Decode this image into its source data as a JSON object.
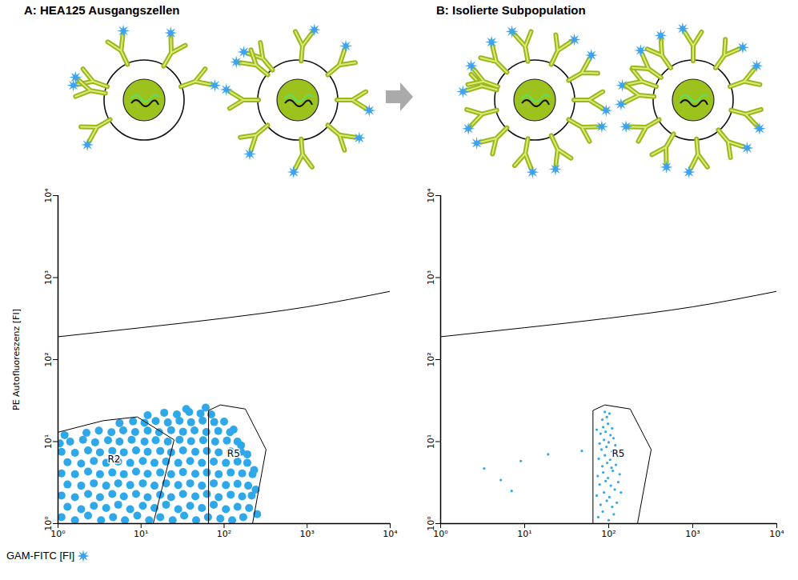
{
  "chart_data": [
    {
      "type": "scatter",
      "title": "A: HEA125 Ausgangszellen",
      "x_label": "GAM-FITC [FI]",
      "y_label": "PE Autofluoreszenz [FI]",
      "log": true,
      "color": "#2fa8ea",
      "xlim": [
        1,
        10000
      ],
      "ylim": [
        1,
        10000
      ],
      "xticks": [
        {
          "value": 1,
          "label": "10⁰"
        },
        {
          "value": 10,
          "label": "10¹"
        },
        {
          "value": 100,
          "label": "10²"
        },
        {
          "value": 1000,
          "label": "10³"
        },
        {
          "value": 10000,
          "label": "10⁴"
        }
      ],
      "yticks": [
        {
          "value": 1,
          "label": "10⁰"
        },
        {
          "value": 10,
          "label": "10¹"
        },
        {
          "value": 100,
          "label": "10²"
        },
        {
          "value": 1000,
          "label": "10³"
        },
        {
          "value": 10000,
          "label": "10⁴"
        }
      ],
      "points": [
        [
          1.1,
          1.2
        ],
        [
          1.6,
          1.1
        ],
        [
          2.3,
          1.25
        ],
        [
          3.3,
          1.1
        ],
        [
          4.6,
          1.2
        ],
        [
          6.4,
          1.1
        ],
        [
          9,
          1.25
        ],
        [
          12.5,
          1.1
        ],
        [
          17,
          1.2
        ],
        [
          24,
          1.1
        ],
        [
          33,
          1.25
        ],
        [
          46,
          1.1
        ],
        [
          64,
          1.2
        ],
        [
          90,
          1.15
        ],
        [
          125,
          1.1
        ],
        [
          170,
          1.2
        ],
        [
          1.3,
          1.6
        ],
        [
          1.9,
          1.5
        ],
        [
          2.7,
          1.65
        ],
        [
          3.8,
          1.55
        ],
        [
          5.3,
          1.7
        ],
        [
          7.4,
          1.5
        ],
        [
          10.5,
          1.65
        ],
        [
          14.5,
          1.55
        ],
        [
          20,
          1.7
        ],
        [
          28,
          1.5
        ],
        [
          39,
          1.65
        ],
        [
          54,
          1.55
        ],
        [
          75,
          1.7
        ],
        [
          105,
          1.5
        ],
        [
          145,
          1.6
        ],
        [
          200,
          1.55
        ],
        [
          1.1,
          2.2
        ],
        [
          1.6,
          2.1
        ],
        [
          2.3,
          2.3
        ],
        [
          3.2,
          2.1
        ],
        [
          4.5,
          2.3
        ],
        [
          6.2,
          2.15
        ],
        [
          8.7,
          2.3
        ],
        [
          12,
          2.1
        ],
        [
          17,
          2.25
        ],
        [
          23,
          2.1
        ],
        [
          32,
          2.3
        ],
        [
          45,
          2.15
        ],
        [
          62,
          2.3
        ],
        [
          86,
          2.1
        ],
        [
          120,
          2.25
        ],
        [
          165,
          2.15
        ],
        [
          215,
          2.2
        ],
        [
          1.3,
          3.0
        ],
        [
          1.9,
          2.9
        ],
        [
          2.7,
          3.1
        ],
        [
          3.8,
          2.9
        ],
        [
          5.3,
          3.1
        ],
        [
          7.4,
          2.95
        ],
        [
          10.5,
          3.1
        ],
        [
          14.5,
          2.9
        ],
        [
          20,
          3.1
        ],
        [
          28,
          2.95
        ],
        [
          39,
          3.1
        ],
        [
          54,
          2.9
        ],
        [
          75,
          3.1
        ],
        [
          105,
          2.95
        ],
        [
          145,
          3.05
        ],
        [
          195,
          2.9
        ],
        [
          1.1,
          4.1
        ],
        [
          1.6,
          4.0
        ],
        [
          2.3,
          4.3
        ],
        [
          3.2,
          4.0
        ],
        [
          4.5,
          4.2
        ],
        [
          6.2,
          4.0
        ],
        [
          8.7,
          4.3
        ],
        [
          12,
          4.05
        ],
        [
          17,
          4.2
        ],
        [
          23,
          4.0
        ],
        [
          32,
          4.25
        ],
        [
          45,
          4.05
        ],
        [
          62,
          4.2
        ],
        [
          86,
          4.0
        ],
        [
          120,
          4.2
        ],
        [
          165,
          4.1
        ],
        [
          220,
          4.0
        ],
        [
          1.3,
          5.6
        ],
        [
          1.9,
          5.4
        ],
        [
          2.7,
          5.8
        ],
        [
          3.8,
          5.5
        ],
        [
          5.3,
          5.7
        ],
        [
          7.4,
          5.5
        ],
        [
          10.5,
          5.8
        ],
        [
          14.5,
          5.5
        ],
        [
          20,
          5.7
        ],
        [
          28,
          5.5
        ],
        [
          39,
          5.8
        ],
        [
          54,
          5.5
        ],
        [
          75,
          5.7
        ],
        [
          105,
          5.5
        ],
        [
          145,
          5.7
        ],
        [
          190,
          5.5
        ],
        [
          1.1,
          7.5
        ],
        [
          1.6,
          7.3
        ],
        [
          2.3,
          7.8
        ],
        [
          3.2,
          7.4
        ],
        [
          4.5,
          7.7
        ],
        [
          6.2,
          7.4
        ],
        [
          8.7,
          7.8
        ],
        [
          12,
          7.5
        ],
        [
          17,
          7.7
        ],
        [
          23,
          7.4
        ],
        [
          32,
          7.8
        ],
        [
          45,
          7.5
        ],
        [
          62,
          7.7
        ],
        [
          86,
          7.4
        ],
        [
          120,
          7.6
        ],
        [
          160,
          7.5
        ],
        [
          1.4,
          10
        ],
        [
          2.0,
          10.5
        ],
        [
          2.8,
          9.8
        ],
        [
          4,
          10.4
        ],
        [
          5.5,
          10
        ],
        [
          7.7,
          10.5
        ],
        [
          11,
          10
        ],
        [
          15,
          10.4
        ],
        [
          21,
          10
        ],
        [
          29,
          10.5
        ],
        [
          40,
          10.1
        ],
        [
          56,
          10.4
        ],
        [
          78,
          10
        ],
        [
          108,
          10.3
        ],
        [
          145,
          10
        ],
        [
          2.2,
          12.8
        ],
        [
          3.1,
          13.6
        ],
        [
          4.4,
          13
        ],
        [
          6.1,
          13.7
        ],
        [
          8.5,
          13.1
        ],
        [
          12,
          13.6
        ],
        [
          16.5,
          13
        ],
        [
          23,
          13.8
        ],
        [
          32,
          13.2
        ],
        [
          44,
          13.7
        ],
        [
          61,
          13.1
        ],
        [
          85,
          13.5
        ],
        [
          118,
          13
        ],
        [
          5.5,
          16.8
        ],
        [
          8,
          17.6
        ],
        [
          11,
          17
        ],
        [
          15,
          17.8
        ],
        [
          21,
          17.1
        ],
        [
          29,
          17.9
        ],
        [
          40,
          17.2
        ],
        [
          55,
          18
        ],
        [
          76,
          17.3
        ],
        [
          100,
          17.5
        ],
        [
          12,
          21
        ],
        [
          19,
          22.5
        ],
        [
          27,
          21.5
        ],
        [
          38,
          23
        ],
        [
          52,
          22
        ],
        [
          70,
          21.5
        ],
        [
          130,
          14
        ],
        [
          160,
          9
        ],
        [
          190,
          7
        ],
        [
          230,
          4.5
        ],
        [
          240,
          2.6
        ],
        [
          1.05,
          9.5
        ],
        [
          1.2,
          12
        ],
        [
          35,
          25
        ],
        [
          60,
          26
        ],
        [
          250,
          1.3
        ]
      ],
      "gates": [
        {
          "name": "R2",
          "x": [
            1,
            3.5,
            9,
            25,
            14,
            1
          ],
          "y": [
            13,
            18,
            20,
            10.5,
            1,
            1
          ]
        },
        {
          "name": "R5",
          "x": [
            65,
            65,
            90,
            180,
            320,
            220
          ],
          "y": [
            1,
            24,
            28,
            25,
            8,
            1
          ]
        }
      ],
      "threshold_line": {
        "x": [
          1,
          10,
          100,
          1000,
          10000
        ],
        "y": [
          190,
          245,
          320,
          440,
          680
        ]
      }
    },
    {
      "type": "scatter",
      "title": "B: Isolierte Subpopulation",
      "log": true,
      "color": "#2fa8ea",
      "xlim": [
        1,
        10000
      ],
      "ylim": [
        1,
        10000
      ],
      "xticks": [
        {
          "value": 1,
          "label": "10⁰"
        },
        {
          "value": 10,
          "label": "10¹"
        },
        {
          "value": 100,
          "label": "10²"
        },
        {
          "value": 1000,
          "label": "10³"
        },
        {
          "value": 10000,
          "label": "10⁴"
        }
      ],
      "yticks": [
        {
          "value": 1,
          "label": "10⁰"
        },
        {
          "value": 10,
          "label": "10¹"
        },
        {
          "value": 100,
          "label": "10²"
        },
        {
          "value": 1000,
          "label": "10³"
        },
        {
          "value": 10000,
          "label": "10⁴"
        }
      ],
      "points": [
        [
          75,
          1.2
        ],
        [
          85,
          1.4
        ],
        [
          100,
          1.1
        ],
        [
          115,
          1.3
        ],
        [
          80,
          1.7
        ],
        [
          95,
          1.9
        ],
        [
          110,
          1.6
        ],
        [
          125,
          1.8
        ],
        [
          72,
          2.2
        ],
        [
          88,
          2.4
        ],
        [
          102,
          2.1
        ],
        [
          118,
          2.6
        ],
        [
          78,
          3
        ],
        [
          92,
          3.3
        ],
        [
          106,
          2.9
        ],
        [
          130,
          3.2
        ],
        [
          74,
          3.8
        ],
        [
          86,
          4.2
        ],
        [
          98,
          3.6
        ],
        [
          112,
          4.4
        ],
        [
          84,
          5
        ],
        [
          96,
          5.5
        ],
        [
          108,
          4.8
        ],
        [
          122,
          5.2
        ],
        [
          76,
          6.2
        ],
        [
          90,
          6.8
        ],
        [
          104,
          6
        ],
        [
          117,
          7
        ],
        [
          82,
          8
        ],
        [
          94,
          8.6
        ],
        [
          110,
          7.6
        ],
        [
          78,
          9.5
        ],
        [
          88,
          10.5
        ],
        [
          100,
          9.8
        ],
        [
          114,
          11
        ],
        [
          80,
          12.5
        ],
        [
          92,
          13.2
        ],
        [
          105,
          12
        ],
        [
          86,
          15
        ],
        [
          98,
          16.5
        ],
        [
          110,
          14.5
        ],
        [
          84,
          18.5
        ],
        [
          95,
          20
        ],
        [
          90,
          23
        ],
        [
          102,
          22
        ],
        [
          120,
          9
        ],
        [
          128,
          6.5
        ],
        [
          72,
          14
        ],
        [
          135,
          4
        ],
        [
          140,
          2.4
        ],
        [
          3.3,
          4.7
        ],
        [
          5.2,
          3.4
        ],
        [
          9,
          5.8
        ],
        [
          19,
          7
        ],
        [
          48,
          7.7
        ],
        [
          7,
          2.5
        ]
      ],
      "gates": [
        {
          "name": "R5",
          "x": [
            65,
            65,
            90,
            180,
            320,
            220
          ],
          "y": [
            1,
            24,
            28,
            25,
            8,
            1
          ]
        }
      ],
      "threshold_line": {
        "x": [
          1,
          10,
          100,
          1000,
          10000
        ],
        "y": [
          190,
          245,
          320,
          440,
          680
        ]
      }
    }
  ]
}
